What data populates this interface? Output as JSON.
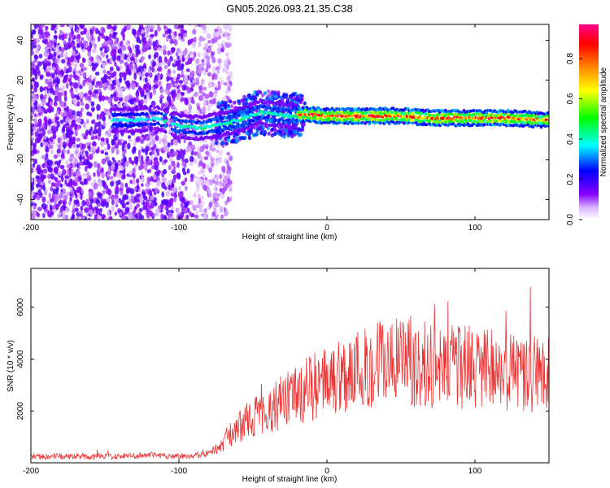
{
  "title": "GN05.2026.093.21.35.C38",
  "chart_data": [
    {
      "type": "heatmap",
      "title": "GN05.2026.093.21.35.C38",
      "xlabel": "Height of straight line (km)",
      "ylabel": "Frequency (Hz)",
      "xlim": [
        -200,
        150
      ],
      "ylim": [
        -50,
        48
      ],
      "xticks": [
        -200,
        -100,
        0,
        100
      ],
      "yticks": [
        -40,
        -20,
        0,
        20,
        40
      ],
      "colorbar": {
        "label": "Normalized spectral amplitude",
        "range": [
          0.0,
          0.97
        ],
        "ticks": [
          0.0,
          0.2,
          0.4,
          0.6,
          0.8
        ],
        "colormap": [
          "#ffffff",
          "#8800ff",
          "#0000ff",
          "#00ffff",
          "#00ff00",
          "#ffff00",
          "#ff8800",
          "#ff0000",
          "#ff0088"
        ]
      },
      "ridge": [
        {
          "x": -145,
          "y": 0
        },
        {
          "x": -130,
          "y": 0
        },
        {
          "x": -115,
          "y": 1
        },
        {
          "x": -100,
          "y": -3
        },
        {
          "x": -85,
          "y": -4
        },
        {
          "x": -70,
          "y": -2
        },
        {
          "x": -55,
          "y": 1
        },
        {
          "x": -45,
          "y": 4
        },
        {
          "x": -35,
          "y": 3
        },
        {
          "x": -25,
          "y": 2
        },
        {
          "x": -15,
          "y": 3
        },
        {
          "x": 0,
          "y": 2
        },
        {
          "x": 25,
          "y": 2
        },
        {
          "x": 50,
          "y": 2
        },
        {
          "x": 75,
          "y": 1
        },
        {
          "x": 100,
          "y": 1
        },
        {
          "x": 125,
          "y": 1
        },
        {
          "x": 150,
          "y": 0
        }
      ]
    },
    {
      "type": "line",
      "xlabel": "Height of straight line (km)",
      "ylabel": "SNR (10 * v/v)",
      "xlim": [
        -200,
        150
      ],
      "ylim": [
        0,
        7500
      ],
      "xticks": [
        -200,
        -100,
        0,
        100
      ],
      "yticks": [
        2000,
        4000,
        6000
      ],
      "color": "#ee3333",
      "series": [
        {
          "name": "SNR",
          "x": [
            -200,
            -180,
            -160,
            -140,
            -120,
            -100,
            -85,
            -75,
            -65,
            -55,
            -45,
            -35,
            -25,
            -15,
            -5,
            5,
            15,
            25,
            35,
            45,
            55,
            65,
            75,
            85,
            95,
            105,
            115,
            125,
            135,
            150
          ],
          "y": [
            250,
            250,
            250,
            250,
            300,
            250,
            300,
            500,
            1100,
            1600,
            1900,
            2200,
            2500,
            2800,
            3000,
            3300,
            3500,
            3700,
            3900,
            3900,
            3950,
            3800,
            3800,
            3700,
            3650,
            3600,
            3550,
            3500,
            3450,
            3400
          ]
        }
      ]
    }
  ]
}
